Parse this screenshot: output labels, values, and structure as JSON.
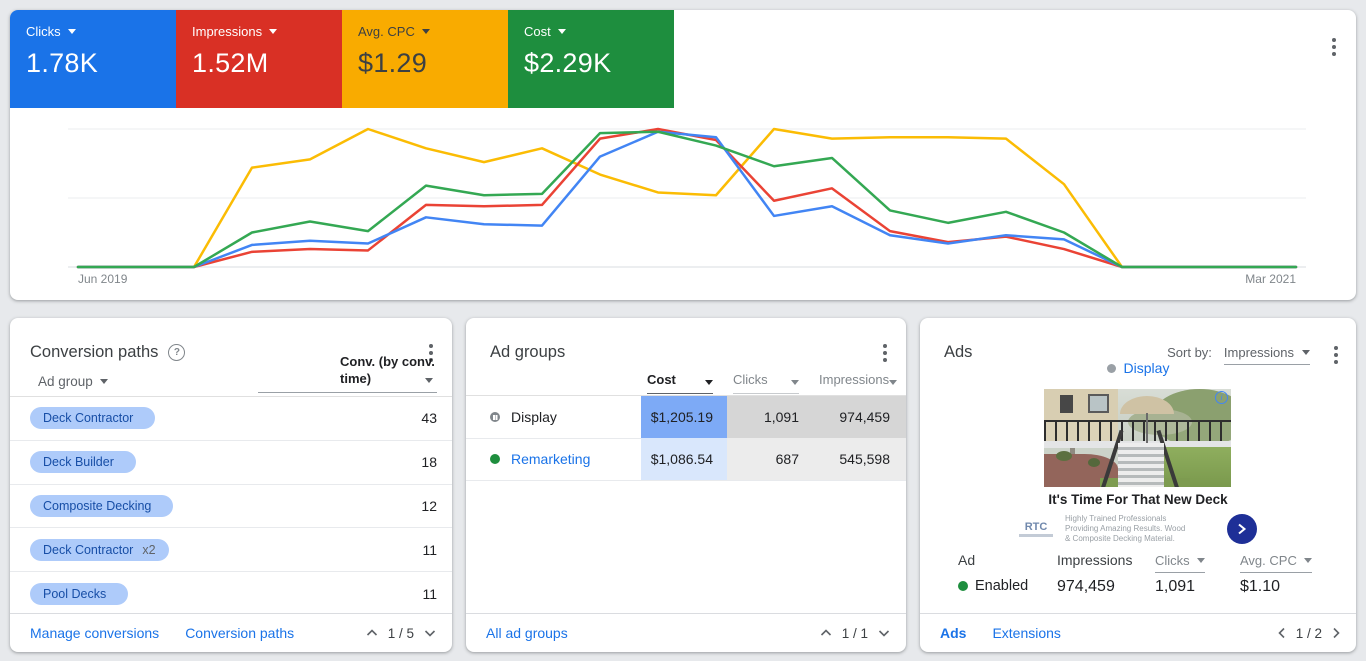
{
  "colors": {
    "chip_bg": "#aecbfa",
    "chip_text": "#174ea6",
    "cell_cost_sel": "#7daaf6",
    "cell_metric_sel": "#d6d6d6",
    "cell_cost": "#d9e7fc",
    "cell_metric": "#ececec",
    "enabled_green": "#1e8e3e",
    "paused_gray": "#80868b",
    "accent_blue": "#1a73e8"
  },
  "scorecards": [
    {
      "label": "Clicks",
      "value": "1.78K",
      "bg": "#1a73e8",
      "fg": "#ffffff"
    },
    {
      "label": "Impressions",
      "value": "1.52M",
      "bg": "#d93025",
      "fg": "#ffffff"
    },
    {
      "label": "Avg. CPC",
      "value": "$1.29",
      "bg": "#f9ab00",
      "fg": "#3c4043"
    },
    {
      "label": "Cost",
      "value": "$2.29K",
      "bg": "#1e8e3e",
      "fg": "#ffffff"
    }
  ],
  "chart_data": {
    "type": "line",
    "x": [
      "Jun 2019",
      "Jul 2019",
      "Aug 2019",
      "Sep 2019",
      "Oct 2019",
      "Nov 2019",
      "Dec 2019",
      "Jan 2020",
      "Feb 2020",
      "Mar 2020",
      "Apr 2020",
      "May 2020",
      "Jun 2020",
      "Jul 2020",
      "Aug 2020",
      "Sep 2020",
      "Oct 2020",
      "Nov 2020",
      "Dec 2020",
      "Jan 2021",
      "Feb 2021",
      "Mar 2021"
    ],
    "y_units": "normalized 0-100 (relative to top gridline)",
    "ylim": [
      0,
      100
    ],
    "grid": "3 horizontal gridlines",
    "legend": "none (colors match scorecards above)",
    "xlabel_left": "Jun 2019",
    "xlabel_right": "Mar 2021",
    "series": [
      {
        "name": "Clicks",
        "color": "#4285f4",
        "draw_order": 3,
        "values": [
          0,
          0,
          0,
          16,
          19,
          17,
          36,
          31,
          30,
          80,
          98,
          94,
          37,
          44,
          23,
          17,
          23,
          20,
          0,
          0,
          0,
          0
        ]
      },
      {
        "name": "Impressions",
        "color": "#ea4335",
        "draw_order": 2,
        "values": [
          0,
          0,
          0,
          11,
          13,
          12,
          45,
          44,
          45,
          93,
          100,
          92,
          48,
          57,
          26,
          18,
          22,
          13,
          0,
          0,
          0,
          0
        ]
      },
      {
        "name": "Avg. CPC",
        "color": "#fbbc04",
        "draw_order": 1,
        "values": [
          0,
          0,
          0,
          72,
          78,
          100,
          86,
          76,
          86,
          67,
          54,
          52,
          100,
          93,
          94,
          94,
          93,
          60,
          0,
          0,
          0,
          0
        ]
      },
      {
        "name": "Cost",
        "color": "#34a853",
        "draw_order": 4,
        "values": [
          0,
          0,
          0,
          25,
          33,
          26,
          59,
          52,
          53,
          97,
          98,
          88,
          73,
          79,
          41,
          32,
          40,
          25,
          0,
          0,
          0,
          0
        ]
      }
    ]
  },
  "conversion_paths": {
    "title": "Conversion paths",
    "col_left": "Ad group",
    "col_right_line1": "Conv. (by conv.",
    "col_right_line2": "time)",
    "rows": [
      {
        "chip": "Deck Contractor",
        "mult": "",
        "value": "43"
      },
      {
        "chip": "Deck Builder",
        "mult": "",
        "value": "18"
      },
      {
        "chip": "Composite Decking",
        "mult": "",
        "value": "12"
      },
      {
        "chip": "Deck Contractor",
        "mult": "x2",
        "value": "11"
      },
      {
        "chip": "Pool Decks",
        "mult": "",
        "value": "11"
      }
    ],
    "links": [
      "Manage conversions",
      "Conversion paths"
    ],
    "pagination": "1 / 5"
  },
  "ad_groups": {
    "title": "Ad groups",
    "headers": [
      "Cost",
      "Clicks",
      "Impressions"
    ],
    "rows": [
      {
        "name": "Display",
        "status": "paused",
        "cells": [
          "$1,205.19",
          "1,091",
          "974,459"
        ]
      },
      {
        "name": "Remarketing",
        "status": "enabled",
        "cells": [
          "$1,086.54",
          "687",
          "545,598"
        ]
      }
    ],
    "footer_link": "All ad groups",
    "pagination": "1 / 1"
  },
  "ads": {
    "title": "Ads",
    "sort_label": "Sort by:",
    "sort_value": "Impressions",
    "channel": "Display",
    "headline": "It's Time For That New Deck",
    "logo": "RTC",
    "desc_line1": "Highly Trained Professionals",
    "desc_line2": "Providing Amazing Results. Wood",
    "desc_line3": "& Composite Decking Material.",
    "stats": {
      "h_ad": "Ad",
      "h_impressions": "Impressions",
      "h_clicks": "Clicks",
      "h_cpc": "Avg. CPC",
      "status": "Enabled",
      "impressions": "974,459",
      "clicks": "1,091",
      "cpc": "$1.10"
    },
    "links": [
      "Ads",
      "Extensions"
    ],
    "pagination": "1 / 2"
  }
}
